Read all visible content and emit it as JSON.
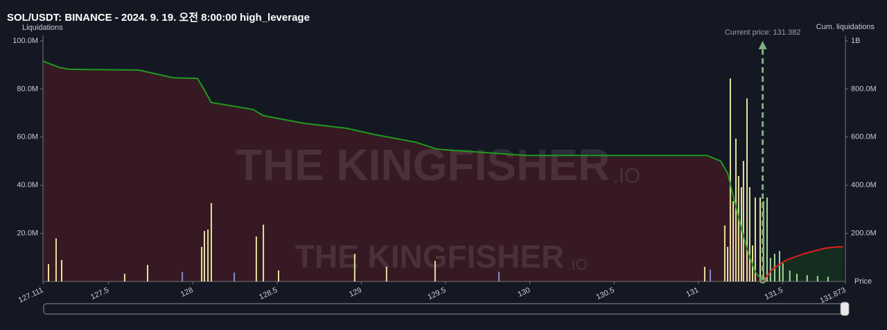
{
  "chart_data": {
    "type": "bar",
    "title": "SOL/USDT: BINANCE - 2024. 9. 19. 오전 8:00:00 high_leverage",
    "y_label": "Liquidations",
    "y2_label": "Cum. liquidations",
    "x_label": "Price",
    "watermark": "THE KINGFISHER",
    "watermark_suffix": ".IO",
    "annotation": {
      "text": "Current price: 131.382",
      "x": 131.382,
      "color": "#7fae7f"
    },
    "xlim": [
      127.111,
      131.873
    ],
    "xticks": [
      127.111,
      127.5,
      128,
      128.5,
      129,
      129.5,
      130,
      130.5,
      131,
      131.5,
      131.873
    ],
    "ylim": [
      0,
      100000000
    ],
    "yticks": [
      {
        "value": 20000000,
        "label": "20.0M"
      },
      {
        "value": 40000000,
        "label": "40.0M"
      },
      {
        "value": 60000000,
        "label": "60.0M"
      },
      {
        "value": 80000000,
        "label": "80.0M"
      },
      {
        "value": 100000000,
        "label": "100.0M"
      }
    ],
    "y2lim": [
      0,
      1000000000
    ],
    "y2ticks": [
      {
        "value": 200000000,
        "label": "200.0M"
      },
      {
        "value": 400000000,
        "label": "400.0M"
      },
      {
        "value": 600000000,
        "label": "600.0M"
      },
      {
        "value": 800000000,
        "label": "800.0M"
      },
      {
        "value": 1000000000,
        "label": "1B"
      }
    ],
    "series": [
      {
        "color": "#e6e3a1",
        "x": [
          127.144,
          127.189,
          127.222,
          127.596,
          127.732,
          128.053,
          128.069,
          128.09,
          128.11,
          128.377,
          128.419,
          128.509,
          128.961,
          129.15,
          129.438,
          131.038,
          131.157,
          131.174,
          131.19,
          131.207,
          131.223,
          131.239,
          131.256,
          131.268,
          131.289,
          131.305,
          131.322,
          131.338,
          131.367
        ],
        "values": [
          7200000,
          17900000,
          8900000,
          3200000,
          6900000,
          14400000,
          21000000,
          21600000,
          32600000,
          18700000,
          23600000,
          4600000,
          11500000,
          6100000,
          8600000,
          6100000,
          23300000,
          14400000,
          84400000,
          33400000,
          59400000,
          43800000,
          39200000,
          50100000,
          76100000,
          39200000,
          15000000,
          34900000,
          34900000
        ]
      },
      {
        "color": "#7f8fc9",
        "x": [
          127.938,
          128.246,
          129.817,
          131.071
        ],
        "values": [
          4000000,
          3700000,
          4000000,
          4900000
        ]
      },
      {
        "color": "#a8d99a",
        "x": [
          131.387,
          131.408,
          131.428,
          131.453,
          131.482,
          131.502,
          131.543,
          131.585,
          131.646,
          131.708,
          131.77
        ],
        "values": [
          33400000,
          34900000,
          9800000,
          11500000,
          12700000,
          7500000,
          4600000,
          3200000,
          2600000,
          2300000,
          2000000
        ]
      },
      {
        "type": "line",
        "axis": "y2",
        "color": "#1f9a1f",
        "fill": "#3a1a22",
        "x": [
          127.111,
          127.206,
          127.267,
          127.678,
          127.884,
          128.028,
          128.069,
          128.11,
          128.213,
          128.357,
          128.419,
          128.665,
          128.912,
          129.077,
          129.323,
          129.447,
          129.734,
          129.981,
          131.05,
          131.132,
          131.174,
          131.215,
          131.256,
          131.297,
          131.338,
          131.379
        ],
        "values": [
          916000000,
          890000000,
          882000000,
          879000000,
          847000000,
          844000000,
          795000000,
          744000000,
          732000000,
          715000000,
          689000000,
          657000000,
          637000000,
          611000000,
          579000000,
          550000000,
          536000000,
          524000000,
          524000000,
          501000000,
          450000000,
          334000000,
          219000000,
          118000000,
          40000000,
          3000000
        ]
      },
      {
        "type": "line",
        "axis": "y2",
        "color": "#e0201f",
        "fill": "#14301f",
        "x": [
          131.382,
          131.441,
          131.523,
          131.626,
          131.749,
          131.831,
          131.86
        ],
        "values": [
          0,
          52000000,
          89000000,
          115000000,
          138000000,
          144000000,
          144000000
        ]
      }
    ]
  }
}
